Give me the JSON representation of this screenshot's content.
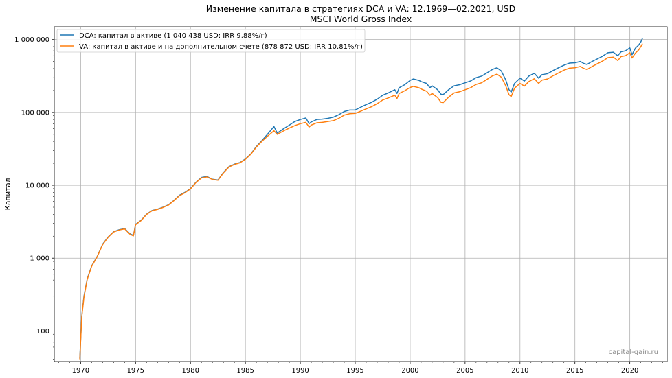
{
  "chart_data": {
    "type": "line",
    "title": "Изменение капитала в стратегиях DCA и VA: 12.1969—02.2021, USD",
    "subtitle": "MSCI World Gross Index",
    "xlabel": "",
    "ylabel": "Капитал",
    "yscale": "log",
    "xlim": [
      1967.6,
      2023.4
    ],
    "ylim": [
      38,
      1500000
    ],
    "grid": true,
    "legend_position": "top-left",
    "watermark": "capital-gain.ru",
    "x_ticks": [
      1970,
      1975,
      1980,
      1985,
      1990,
      1995,
      2000,
      2005,
      2010,
      2015,
      2020
    ],
    "x_tick_labels": [
      "1970",
      "1975",
      "1980",
      "1985",
      "1990",
      "1995",
      "2000",
      "2005",
      "2010",
      "2015",
      "2020"
    ],
    "y_ticks": [
      100,
      1000,
      10000,
      100000,
      1000000
    ],
    "y_tick_labels": [
      "100",
      "1 000",
      "10 000",
      "100 000",
      "1 000 000"
    ],
    "series": [
      {
        "name": "DCA: капитал в активе (1 040 438 USD: IRR 9.88%/г)",
        "color": "#1f77b4",
        "points": [
          [
            1969.92,
            42
          ],
          [
            1970.1,
            160
          ],
          [
            1970.3,
            300
          ],
          [
            1970.6,
            520
          ],
          [
            1971.0,
            780
          ],
          [
            1971.5,
            1050
          ],
          [
            1972.0,
            1550
          ],
          [
            1972.5,
            1950
          ],
          [
            1973.0,
            2300
          ],
          [
            1973.5,
            2450
          ],
          [
            1974.0,
            2550
          ],
          [
            1974.5,
            2150
          ],
          [
            1974.8,
            2050
          ],
          [
            1975.0,
            2900
          ],
          [
            1975.5,
            3300
          ],
          [
            1976.0,
            4000
          ],
          [
            1976.5,
            4500
          ],
          [
            1977.0,
            4700
          ],
          [
            1977.5,
            5000
          ],
          [
            1978.0,
            5400
          ],
          [
            1978.5,
            6200
          ],
          [
            1979.0,
            7300
          ],
          [
            1979.5,
            8000
          ],
          [
            1980.0,
            9000
          ],
          [
            1980.5,
            11000
          ],
          [
            1981.0,
            12800
          ],
          [
            1981.5,
            13200
          ],
          [
            1982.0,
            12100
          ],
          [
            1982.5,
            11800
          ],
          [
            1983.0,
            15000
          ],
          [
            1983.5,
            18000
          ],
          [
            1984.0,
            19500
          ],
          [
            1984.5,
            20500
          ],
          [
            1985.0,
            23000
          ],
          [
            1985.5,
            27000
          ],
          [
            1986.0,
            34000
          ],
          [
            1986.5,
            41000
          ],
          [
            1987.0,
            50000
          ],
          [
            1987.6,
            64000
          ],
          [
            1987.9,
            52000
          ],
          [
            1988.5,
            60000
          ],
          [
            1989.0,
            67000
          ],
          [
            1989.5,
            75000
          ],
          [
            1990.0,
            80000
          ],
          [
            1990.5,
            84000
          ],
          [
            1990.8,
            70000
          ],
          [
            1991.0,
            74000
          ],
          [
            1991.5,
            80000
          ],
          [
            1992.0,
            81000
          ],
          [
            1992.5,
            83000
          ],
          [
            1993.0,
            86000
          ],
          [
            1993.5,
            93000
          ],
          [
            1994.0,
            103000
          ],
          [
            1994.5,
            108000
          ],
          [
            1995.0,
            108000
          ],
          [
            1995.5,
            118000
          ],
          [
            1996.0,
            128000
          ],
          [
            1996.5,
            138000
          ],
          [
            1997.0,
            152000
          ],
          [
            1997.5,
            172000
          ],
          [
            1998.0,
            185000
          ],
          [
            1998.6,
            205000
          ],
          [
            1998.8,
            182000
          ],
          [
            1999.0,
            218000
          ],
          [
            1999.5,
            240000
          ],
          [
            2000.0,
            275000
          ],
          [
            2000.3,
            288000
          ],
          [
            2000.8,
            275000
          ],
          [
            2001.0,
            265000
          ],
          [
            2001.5,
            250000
          ],
          [
            2001.8,
            218000
          ],
          [
            2002.0,
            232000
          ],
          [
            2002.5,
            205000
          ],
          [
            2002.8,
            178000
          ],
          [
            2003.0,
            175000
          ],
          [
            2003.5,
            205000
          ],
          [
            2004.0,
            232000
          ],
          [
            2004.5,
            240000
          ],
          [
            2005.0,
            255000
          ],
          [
            2005.5,
            270000
          ],
          [
            2006.0,
            300000
          ],
          [
            2006.5,
            315000
          ],
          [
            2007.0,
            350000
          ],
          [
            2007.5,
            390000
          ],
          [
            2007.9,
            410000
          ],
          [
            2008.3,
            370000
          ],
          [
            2008.7,
            280000
          ],
          [
            2009.0,
            205000
          ],
          [
            2009.2,
            190000
          ],
          [
            2009.5,
            250000
          ],
          [
            2010.0,
            295000
          ],
          [
            2010.4,
            270000
          ],
          [
            2010.8,
            315000
          ],
          [
            2011.3,
            345000
          ],
          [
            2011.7,
            295000
          ],
          [
            2012.0,
            330000
          ],
          [
            2012.5,
            340000
          ],
          [
            2013.0,
            375000
          ],
          [
            2013.5,
            410000
          ],
          [
            2014.0,
            445000
          ],
          [
            2014.5,
            475000
          ],
          [
            2015.0,
            480000
          ],
          [
            2015.5,
            500000
          ],
          [
            2015.8,
            470000
          ],
          [
            2016.1,
            455000
          ],
          [
            2016.5,
            495000
          ],
          [
            2017.0,
            540000
          ],
          [
            2017.5,
            590000
          ],
          [
            2018.0,
            660000
          ],
          [
            2018.5,
            670000
          ],
          [
            2018.9,
            600000
          ],
          [
            2019.2,
            680000
          ],
          [
            2019.6,
            700000
          ],
          [
            2020.0,
            770000
          ],
          [
            2020.2,
            620000
          ],
          [
            2020.5,
            760000
          ],
          [
            2020.8,
            840000
          ],
          [
            2021.0,
            930000
          ],
          [
            2021.15,
            1040438
          ]
        ]
      },
      {
        "name": "VA: капитал в активе и на дополнительном счете (878 872 USD: IRR 10.81%/г)",
        "color": "#ff7f0e",
        "points": [
          [
            1969.92,
            40
          ],
          [
            1970.1,
            155
          ],
          [
            1970.3,
            290
          ],
          [
            1970.6,
            510
          ],
          [
            1971.0,
            770
          ],
          [
            1971.5,
            1040
          ],
          [
            1972.0,
            1530
          ],
          [
            1972.5,
            1930
          ],
          [
            1973.0,
            2280
          ],
          [
            1973.5,
            2430
          ],
          [
            1974.0,
            2520
          ],
          [
            1974.5,
            2120
          ],
          [
            1974.8,
            2020
          ],
          [
            1975.0,
            2870
          ],
          [
            1975.5,
            3270
          ],
          [
            1976.0,
            3970
          ],
          [
            1976.5,
            4460
          ],
          [
            1977.0,
            4660
          ],
          [
            1977.5,
            4960
          ],
          [
            1978.0,
            5350
          ],
          [
            1978.5,
            6150
          ],
          [
            1979.0,
            7200
          ],
          [
            1979.5,
            7900
          ],
          [
            1980.0,
            8900
          ],
          [
            1980.5,
            10900
          ],
          [
            1981.0,
            12600
          ],
          [
            1981.5,
            13000
          ],
          [
            1982.0,
            12000
          ],
          [
            1982.5,
            11700
          ],
          [
            1983.0,
            14800
          ],
          [
            1983.5,
            17800
          ],
          [
            1984.0,
            19300
          ],
          [
            1984.5,
            20300
          ],
          [
            1985.0,
            22700
          ],
          [
            1985.5,
            26700
          ],
          [
            1986.0,
            33500
          ],
          [
            1986.5,
            40000
          ],
          [
            1987.0,
            47000
          ],
          [
            1987.6,
            56000
          ],
          [
            1987.9,
            50000
          ],
          [
            1988.5,
            56000
          ],
          [
            1989.0,
            61000
          ],
          [
            1989.5,
            66000
          ],
          [
            1990.0,
            70000
          ],
          [
            1990.5,
            73000
          ],
          [
            1990.8,
            63000
          ],
          [
            1991.0,
            67000
          ],
          [
            1991.5,
            72000
          ],
          [
            1992.0,
            73000
          ],
          [
            1992.5,
            75000
          ],
          [
            1993.0,
            77000
          ],
          [
            1993.5,
            83000
          ],
          [
            1994.0,
            92000
          ],
          [
            1994.5,
            96000
          ],
          [
            1995.0,
            97000
          ],
          [
            1995.5,
            104000
          ],
          [
            1996.0,
            112000
          ],
          [
            1996.5,
            120000
          ],
          [
            1997.0,
            132000
          ],
          [
            1997.5,
            148000
          ],
          [
            1998.0,
            158000
          ],
          [
            1998.6,
            172000
          ],
          [
            1998.8,
            155000
          ],
          [
            1999.0,
            182000
          ],
          [
            1999.5,
            198000
          ],
          [
            2000.0,
            220000
          ],
          [
            2000.3,
            228000
          ],
          [
            2000.8,
            218000
          ],
          [
            2001.0,
            210000
          ],
          [
            2001.5,
            195000
          ],
          [
            2001.8,
            172000
          ],
          [
            2002.0,
            182000
          ],
          [
            2002.5,
            160000
          ],
          [
            2002.8,
            138000
          ],
          [
            2003.0,
            136000
          ],
          [
            2003.5,
            162000
          ],
          [
            2004.0,
            185000
          ],
          [
            2004.5,
            192000
          ],
          [
            2005.0,
            205000
          ],
          [
            2005.5,
            218000
          ],
          [
            2006.0,
            242000
          ],
          [
            2006.5,
            255000
          ],
          [
            2007.0,
            285000
          ],
          [
            2007.5,
            318000
          ],
          [
            2007.9,
            335000
          ],
          [
            2008.3,
            305000
          ],
          [
            2008.7,
            232000
          ],
          [
            2009.0,
            175000
          ],
          [
            2009.2,
            165000
          ],
          [
            2009.5,
            215000
          ],
          [
            2010.0,
            250000
          ],
          [
            2010.4,
            230000
          ],
          [
            2010.8,
            265000
          ],
          [
            2011.3,
            290000
          ],
          [
            2011.7,
            250000
          ],
          [
            2012.0,
            278000
          ],
          [
            2012.5,
            288000
          ],
          [
            2013.0,
            318000
          ],
          [
            2013.5,
            348000
          ],
          [
            2014.0,
            380000
          ],
          [
            2014.5,
            405000
          ],
          [
            2015.0,
            410000
          ],
          [
            2015.5,
            428000
          ],
          [
            2015.8,
            402000
          ],
          [
            2016.1,
            388000
          ],
          [
            2016.5,
            422000
          ],
          [
            2017.0,
            462000
          ],
          [
            2017.5,
            505000
          ],
          [
            2018.0,
            565000
          ],
          [
            2018.5,
            575000
          ],
          [
            2018.9,
            515000
          ],
          [
            2019.2,
            585000
          ],
          [
            2019.6,
            600000
          ],
          [
            2020.0,
            660000
          ],
          [
            2020.2,
            560000
          ],
          [
            2020.5,
            650000
          ],
          [
            2020.8,
            720000
          ],
          [
            2021.0,
            800000
          ],
          [
            2021.15,
            878872
          ]
        ]
      }
    ]
  }
}
